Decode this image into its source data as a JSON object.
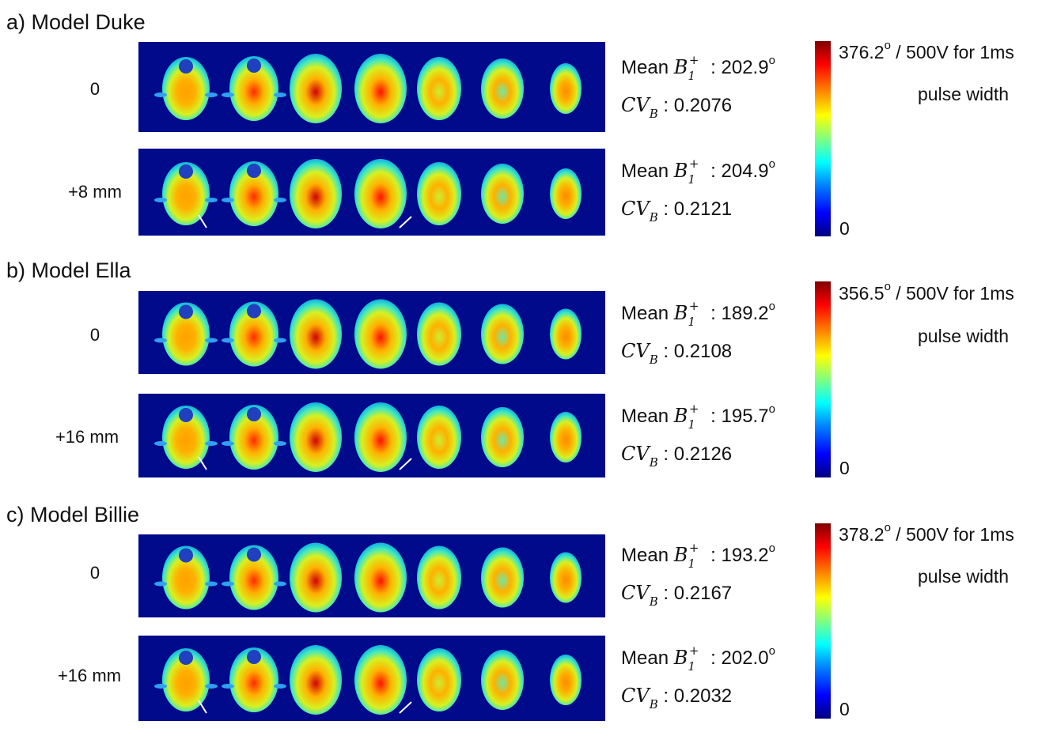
{
  "colors": {
    "background_field": "#000a8a",
    "arrow": "#ffffff"
  },
  "panels": [
    {
      "title": "a) Model Duke",
      "colorbar": {
        "max_label": "376.2o / 500V for 1ms",
        "max_value": "376.2",
        "unit_line1": "/ 500V for 1ms",
        "unit_line2": "pulse width",
        "min_label": "0"
      },
      "rows": [
        {
          "offset": "0",
          "mean_prefix": "Mean",
          "mean_symbol": "B",
          "mean_value": ": 202.9",
          "cv_symbol": "CV",
          "cv_value": ": 0.2076",
          "arrows": false
        },
        {
          "offset": "+8 mm",
          "mean_prefix": "Mean",
          "mean_symbol": "B",
          "mean_value": ": 204.9",
          "cv_symbol": "CV",
          "cv_value": ": 0.2121",
          "arrows": true
        }
      ]
    },
    {
      "title": "b) Model Ella",
      "colorbar": {
        "max_value": "356.5",
        "unit_line1": "/ 500V for 1ms",
        "unit_line2": "pulse width",
        "min_label": "0"
      },
      "rows": [
        {
          "offset": "0",
          "mean_prefix": "Mean",
          "mean_symbol": "B",
          "mean_value": ": 189.2",
          "cv_symbol": "CV",
          "cv_value": ": 0.2108",
          "arrows": false
        },
        {
          "offset": "+16 mm",
          "mean_prefix": "Mean",
          "mean_symbol": "B",
          "mean_value": ": 195.7",
          "cv_symbol": "CV",
          "cv_value": ": 0.2126",
          "arrows": true
        }
      ]
    },
    {
      "title": "c) Model Billie",
      "colorbar": {
        "max_value": "378.2",
        "unit_line1": "/ 500V for 1ms",
        "unit_line2": "pulse width",
        "min_label": "0"
      },
      "rows": [
        {
          "offset": "0",
          "mean_prefix": "Mean",
          "mean_symbol": "B",
          "mean_value": ": 193.2",
          "cv_symbol": "CV",
          "cv_value": ": 0.2167",
          "arrows": false
        },
        {
          "offset": "+16 mm",
          "mean_prefix": "Mean",
          "mean_symbol": "B",
          "mean_value": ": 202.0",
          "cv_symbol": "CV",
          "cv_value": ": 0.2032",
          "arrows": true
        }
      ]
    }
  ],
  "symbols": {
    "sub": "1",
    "sup": "+",
    "degree": "o",
    "cv_sub": "B",
    "cv_subsub": "1",
    "cv_subsup": "+"
  }
}
